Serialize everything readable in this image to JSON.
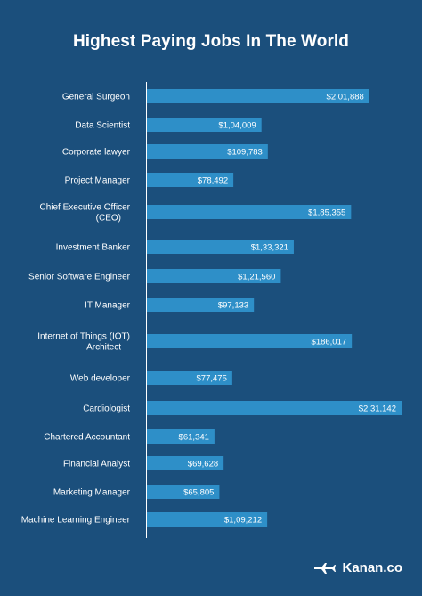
{
  "title": "Highest Paying Jobs In The World",
  "brand": {
    "name": "Kanan.co",
    "logo_icon": "airplane-logo-icon"
  },
  "colors": {
    "background": "#1b4f7c",
    "bar": "#2e8fc8",
    "text": "#ffffff",
    "axis": "#ffffff"
  },
  "chart_data": {
    "type": "bar",
    "orientation": "horizontal",
    "title": "Highest Paying Jobs In The World",
    "categories": [
      [
        "General Surgeon"
      ],
      [
        "Data Scientist"
      ],
      [
        "Corporate lawyer"
      ],
      [
        "Project Manager"
      ],
      [
        "Chief Executive Officer",
        "(CEO)"
      ],
      [
        "Investment Banker"
      ],
      [
        "Senior Software Engineer"
      ],
      [
        "IT Manager"
      ],
      [
        "Internet of Things (IOT)",
        "Architect"
      ],
      [
        "Web developer"
      ],
      [
        "Cardiologist"
      ],
      [
        "Chartered Accountant"
      ],
      [
        "Financial Analyst"
      ],
      [
        "Marketing Manager"
      ],
      [
        "Machine Learning Engineer"
      ]
    ],
    "values": [
      201888,
      104009,
      109783,
      78492,
      185355,
      133321,
      121560,
      97133,
      186017,
      77475,
      231142,
      61341,
      69628,
      65805,
      109212
    ],
    "value_labels": [
      "$2,01,888",
      "$1,04,009",
      "$109,783",
      "$78,492",
      "$1,85,355",
      "$1,33,321",
      "$1,21,560",
      "$97,133",
      "$186,017",
      "$77,475",
      "$2,31,142",
      "$61,341",
      "$69,628",
      "$65,805",
      "$1,09,212"
    ],
    "xlim": [
      0,
      231142
    ],
    "grid": false,
    "legend": "none"
  }
}
